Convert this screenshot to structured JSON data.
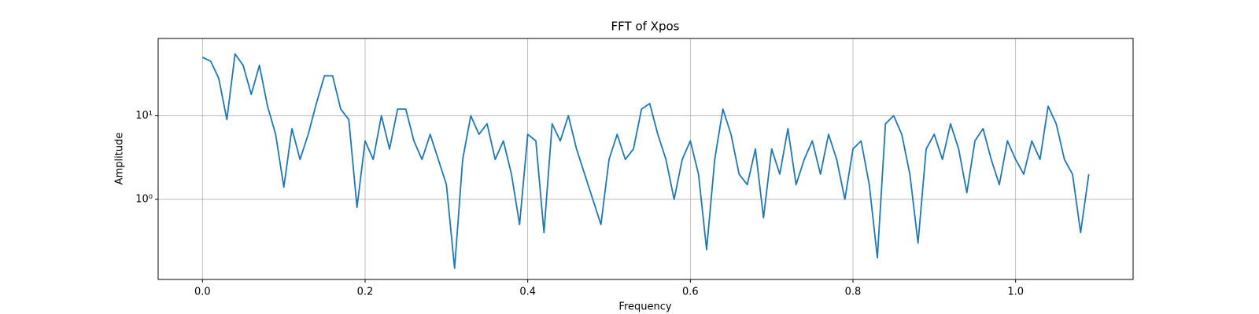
{
  "chart_data": {
    "type": "line",
    "title": "FFT of Xpos",
    "xlabel": "Frequency",
    "ylabel": "Amplitude",
    "x": [
      0,
      0.01,
      0.02,
      0.03,
      0.04,
      0.05,
      0.06,
      0.07,
      0.08,
      0.09,
      0.1,
      0.11,
      0.12,
      0.13,
      0.14,
      0.15,
      0.16,
      0.17,
      0.18,
      0.19,
      0.2,
      0.21,
      0.22,
      0.23,
      0.24,
      0.25,
      0.26,
      0.27,
      0.28,
      0.29,
      0.3,
      0.31,
      0.32,
      0.33,
      0.34,
      0.35,
      0.36,
      0.37,
      0.38,
      0.39,
      0.4,
      0.41,
      0.42,
      0.43,
      0.44,
      0.45,
      0.46,
      0.47,
      0.48,
      0.49,
      0.5,
      0.51,
      0.52,
      0.53,
      0.54,
      0.55,
      0.56,
      0.57,
      0.58,
      0.59,
      0.6,
      0.61,
      0.62,
      0.63,
      0.64,
      0.65,
      0.66,
      0.67,
      0.68,
      0.69,
      0.7,
      0.71,
      0.72,
      0.73,
      0.74,
      0.75,
      0.76,
      0.77,
      0.78,
      0.79,
      0.8,
      0.81,
      0.82,
      0.83,
      0.84,
      0.85,
      0.86,
      0.87,
      0.88,
      0.89,
      0.9,
      0.91,
      0.92,
      0.93,
      0.94,
      0.95,
      0.96,
      0.97,
      0.98,
      0.99,
      1.0,
      1.01,
      1.02,
      1.03,
      1.04,
      1.05,
      1.06,
      1.07,
      1.08,
      1.09
    ],
    "series": [
      {
        "color": "#1f77b4",
        "values": [
          50,
          45,
          28,
          9,
          55,
          40,
          18,
          40,
          13,
          6,
          1.4,
          7,
          3,
          6,
          14,
          30,
          30,
          12,
          9,
          0.8,
          5,
          3,
          10,
          4,
          12,
          12,
          5,
          3,
          6,
          3,
          1.5,
          0.15,
          3,
          10,
          6,
          8,
          3,
          5,
          2,
          0.5,
          6,
          5,
          0.4,
          8,
          5,
          10,
          4,
          2,
          1,
          0.5,
          3,
          6,
          3,
          4,
          12,
          14,
          6,
          3,
          1,
          3,
          5,
          2,
          0.25,
          3,
          12,
          6,
          2,
          1.5,
          4,
          0.6,
          4,
          2,
          7,
          1.5,
          3,
          5,
          2,
          6,
          3,
          1,
          4,
          5,
          1.5,
          0.2,
          8,
          10,
          6,
          2,
          0.3,
          4,
          6,
          3,
          8,
          4,
          1.2,
          5,
          7,
          3,
          1.5,
          5,
          3,
          2,
          5,
          3,
          13,
          8,
          3,
          2,
          0.4,
          2
        ]
      }
    ],
    "xlim": [
      -0.0545,
      1.1445
    ],
    "ylim": [
      0.11,
      84
    ],
    "log_y": true,
    "grid": true,
    "xticks": [
      {
        "value": 0,
        "label": "0.0"
      },
      0.2,
      0.4,
      0.6,
      0.8,
      {
        "value": 1,
        "label": "1.0"
      }
    ],
    "yticks": [
      {
        "value": 1,
        "label": "10⁰"
      },
      {
        "value": 10,
        "label": "10¹"
      }
    ]
  }
}
